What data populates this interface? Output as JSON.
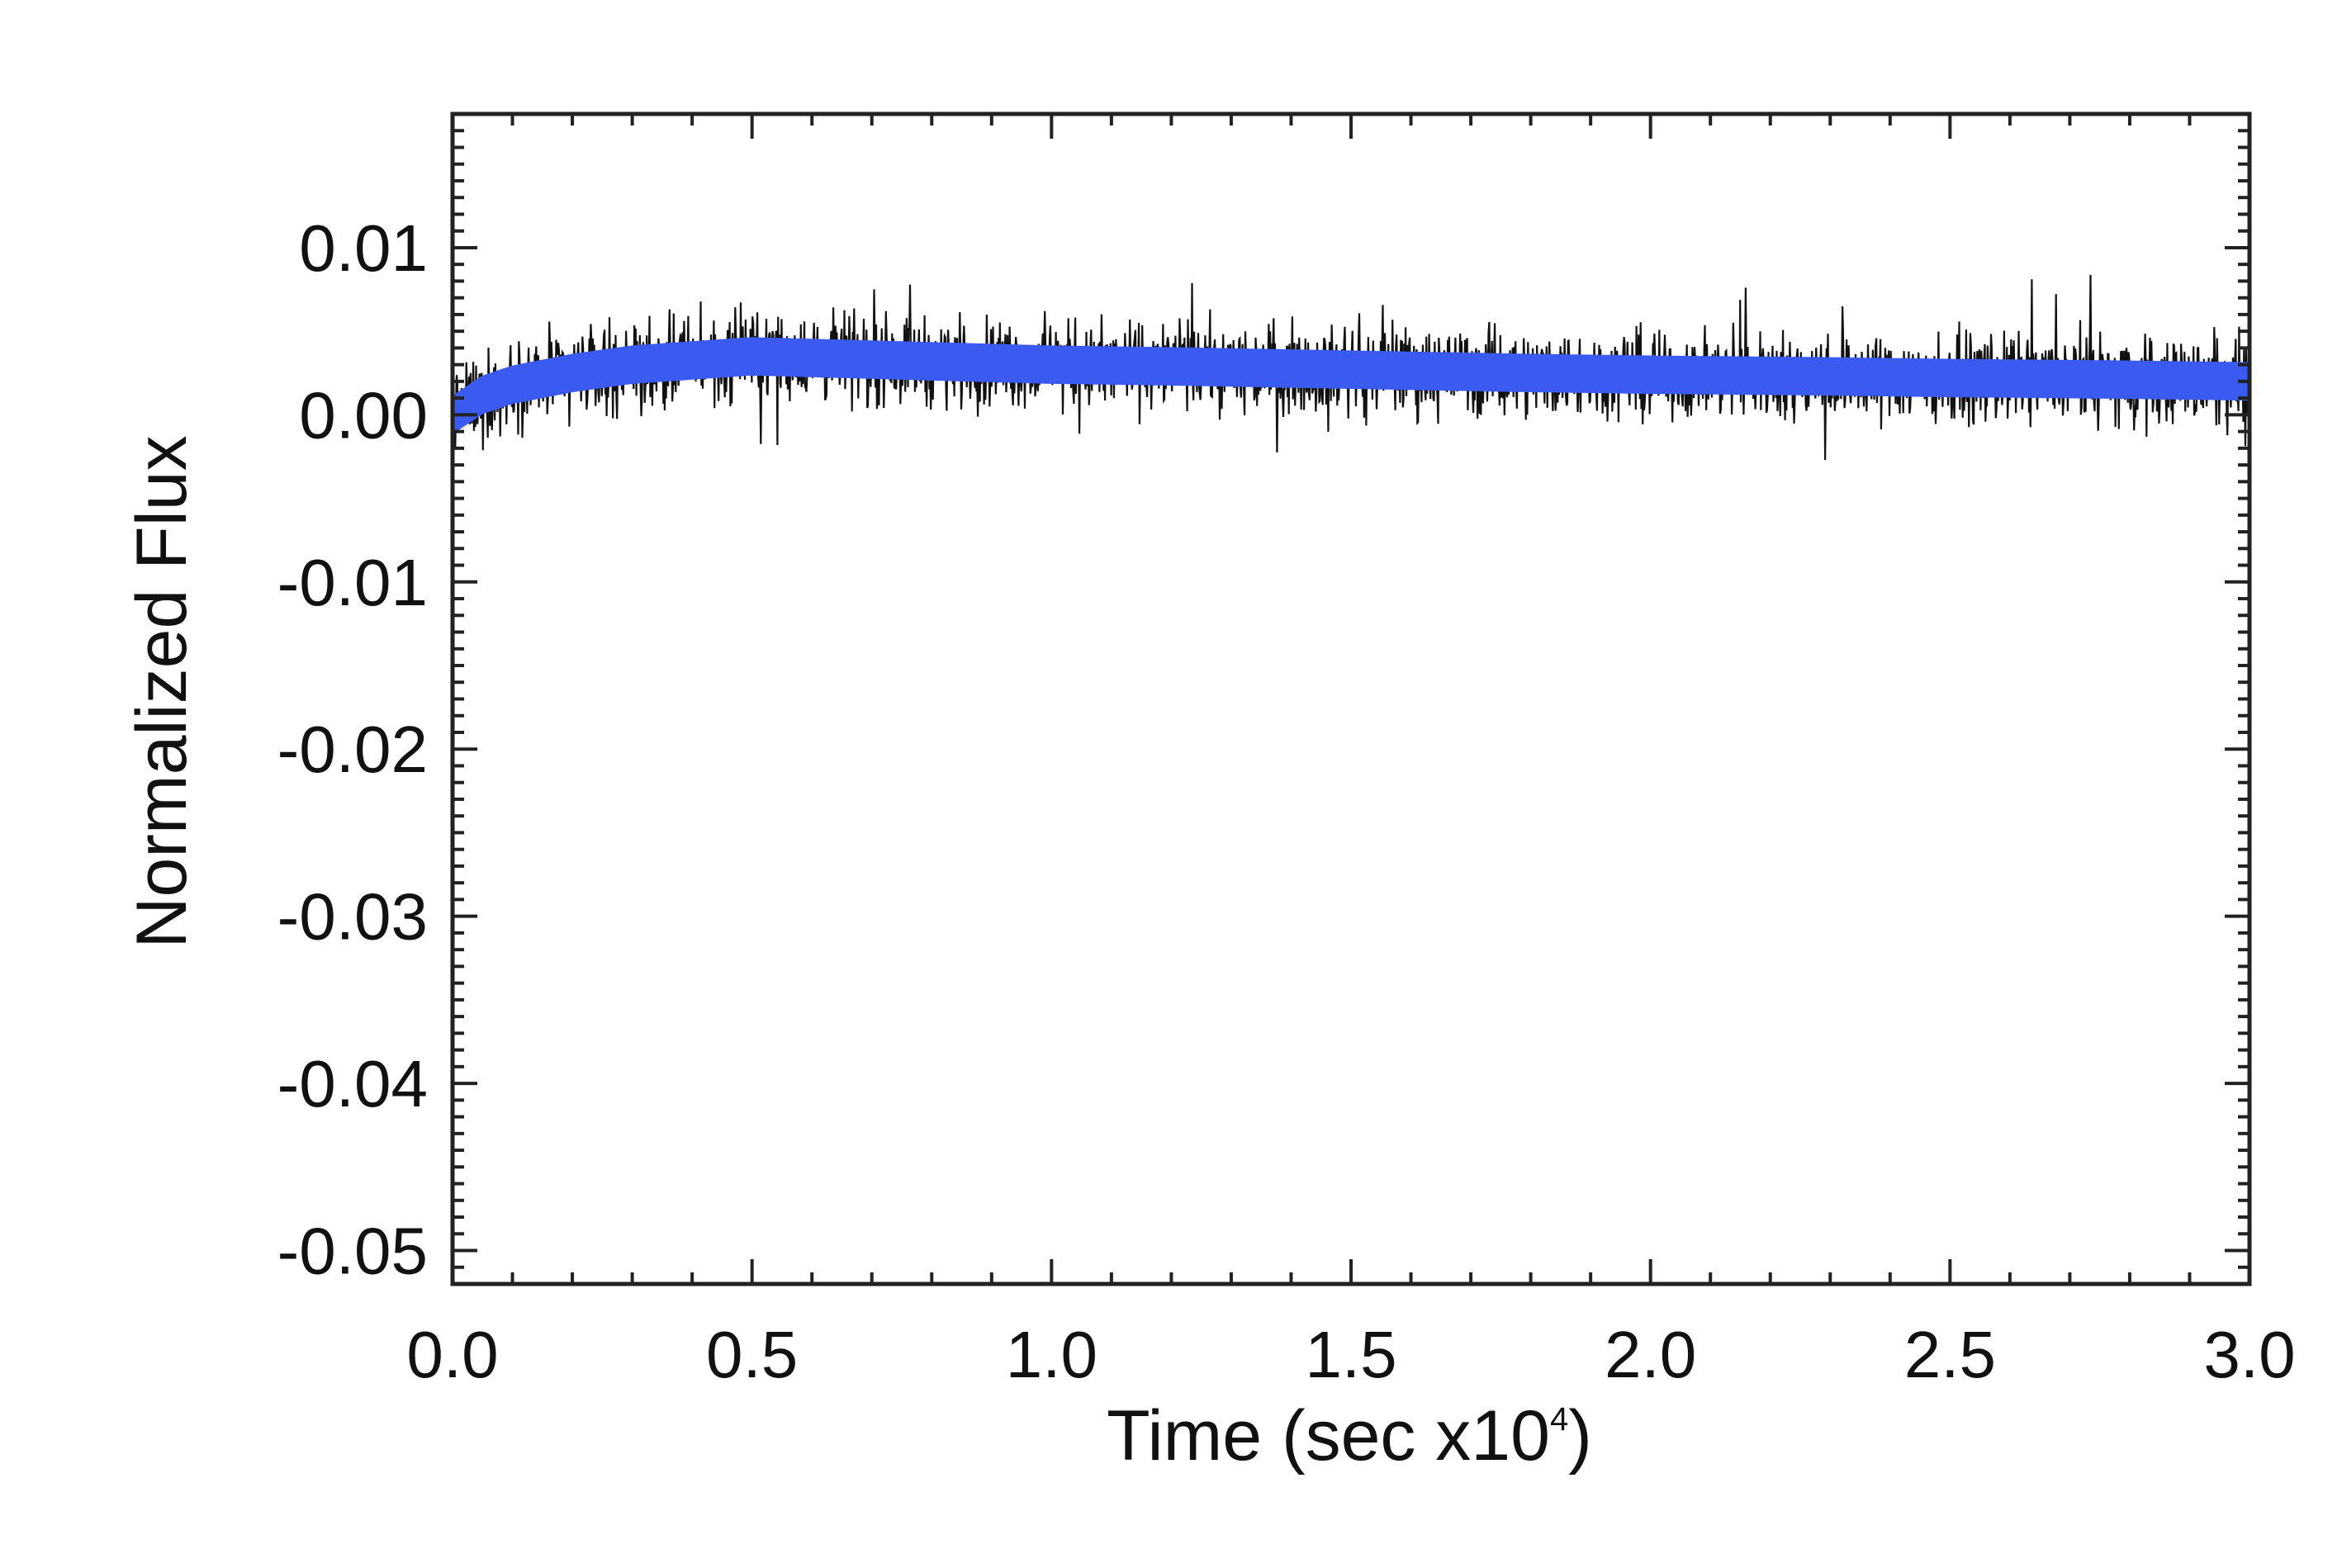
{
  "chart_data": {
    "type": "line",
    "title": "",
    "xlabel": "Time (sec x10",
    "xlabel_superscript": "4",
    "xlabel_suffix": ")",
    "ylabel": "Normalized Flux",
    "xlim": [
      0.0,
      3.0
    ],
    "ylim": [
      -0.052,
      0.018
    ],
    "x_ticks": [
      0.0,
      0.5,
      1.0,
      1.5,
      2.0,
      2.5,
      3.0
    ],
    "x_tick_labels": [
      "0.0",
      "0.5",
      "1.0",
      "1.5",
      "2.0",
      "2.5",
      "3.0"
    ],
    "y_ticks": [
      0.01,
      0.0,
      -0.01,
      -0.02,
      -0.03,
      -0.04,
      -0.05
    ],
    "y_tick_labels": [
      "0.01",
      "0.00",
      "-0.01",
      "-0.02",
      "-0.03",
      "-0.04",
      "-0.05"
    ],
    "grid": false,
    "series": [
      {
        "role": "raw-flux",
        "color": "#111111",
        "noise_amplitude": 0.0022,
        "x": [
          0.0,
          0.05,
          0.1,
          0.2,
          0.3,
          0.5,
          0.7,
          0.9,
          1.0,
          1.2,
          1.5,
          1.8,
          2.0,
          2.3,
          2.5,
          2.8,
          3.0
        ],
        "y": [
          0.0,
          0.0012,
          0.0018,
          0.0025,
          0.003,
          0.0035,
          0.0033,
          0.0031,
          0.003,
          0.0029,
          0.0027,
          0.0025,
          0.0024,
          0.0023,
          0.0022,
          0.0021,
          0.002
        ]
      },
      {
        "role": "model-fit-band",
        "color": "#3b5bf0",
        "band_halfwidth": 0.0011,
        "x": [
          0.0,
          0.05,
          0.1,
          0.2,
          0.3,
          0.5,
          0.7,
          0.9,
          1.0,
          1.2,
          1.5,
          1.8,
          2.0,
          2.3,
          2.5,
          2.8,
          3.0
        ],
        "y": [
          0.0,
          0.0012,
          0.0018,
          0.0025,
          0.003,
          0.0035,
          0.0033,
          0.0031,
          0.003,
          0.0029,
          0.0027,
          0.0025,
          0.0024,
          0.0023,
          0.0022,
          0.0021,
          0.002
        ]
      }
    ]
  }
}
